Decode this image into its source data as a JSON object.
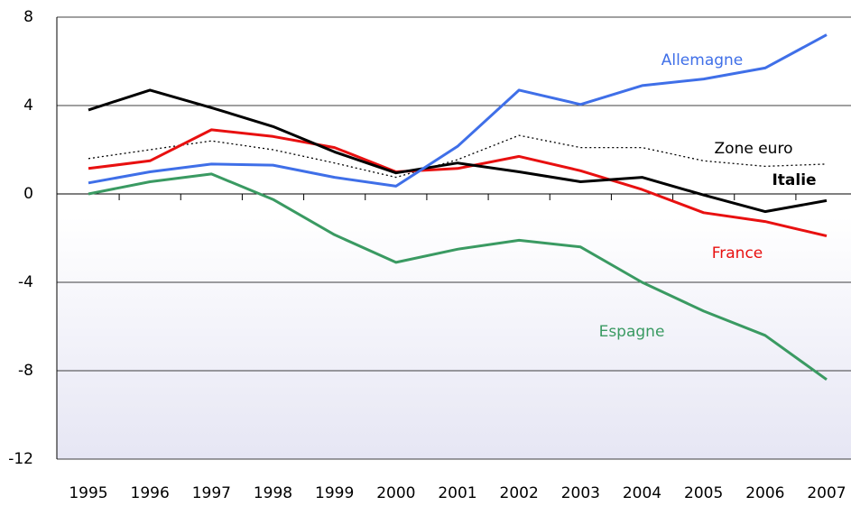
{
  "chart_data": {
    "type": "line",
    "x": [
      1995,
      1996,
      1997,
      1998,
      1999,
      2000,
      2001,
      2002,
      2003,
      2004,
      2005,
      2006,
      2007
    ],
    "series": [
      {
        "name": "Allemagne",
        "color": "#3f6fe8",
        "values": [
          0.5,
          1.0,
          1.35,
          1.3,
          0.75,
          0.35,
          2.15,
          4.7,
          4.05,
          4.9,
          5.2,
          5.7,
          7.2
        ]
      },
      {
        "name": "France",
        "color": "#e81010",
        "values": [
          1.15,
          1.5,
          2.9,
          2.6,
          2.1,
          1.0,
          1.15,
          1.7,
          1.05,
          0.2,
          -0.85,
          -1.25,
          -1.9
        ]
      },
      {
        "name": "Italie",
        "color": "#000000",
        "values": [
          3.8,
          4.7,
          3.9,
          3.05,
          1.9,
          0.95,
          1.4,
          1.0,
          0.55,
          0.75,
          -0.05,
          -0.8,
          -0.3
        ]
      },
      {
        "name": "Espagne",
        "color": "#3a9a62",
        "values": [
          0,
          0.55,
          0.9,
          -0.25,
          -1.85,
          -3.1,
          -2.5,
          -2.1,
          -2.4,
          -4.0,
          -5.3,
          -6.4,
          -8.4
        ]
      },
      {
        "name": "Zone euro",
        "color": "#000000",
        "dashed": true,
        "values": [
          1.6,
          2.0,
          2.4,
          2.0,
          1.4,
          0.75,
          1.55,
          2.65,
          2.1,
          2.1,
          1.5,
          1.25,
          1.35
        ]
      }
    ],
    "xlim": [
      1995,
      2007
    ],
    "ylim": [
      -12,
      8
    ],
    "yticks": [
      -12,
      -8,
      -4,
      0,
      4,
      8
    ],
    "grid": true
  }
}
